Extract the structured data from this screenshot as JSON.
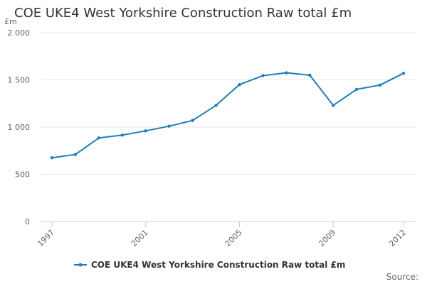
{
  "chart_data": {
    "type": "line",
    "title": "COE UKE4 West Yorkshire Construction Raw total £m",
    "ylabel": "£m",
    "xlabel": "",
    "x": [
      1997,
      1998,
      1999,
      2000,
      2001,
      2002,
      2003,
      2004,
      2005,
      2006,
      2007,
      2008,
      2009,
      2010,
      2011,
      2012
    ],
    "series": [
      {
        "name": "COE UKE4 West Yorkshire Construction Raw total £m",
        "color": "#1f7fb4",
        "values": [
          675,
          710,
          885,
          915,
          960,
          1010,
          1070,
          1230,
          1450,
          1545,
          1575,
          1550,
          1230,
          1400,
          1445,
          1570
        ]
      }
    ],
    "ylim": [
      0,
      2000
    ],
    "y_ticks": [
      "0",
      "500",
      "1 000",
      "1 500",
      "2 000"
    ],
    "x_ticks": [
      "1997",
      "2001",
      "2005",
      "2009",
      "2012"
    ],
    "grid": "horizontal",
    "legend_position": "bottom-center",
    "source": "Source:"
  }
}
